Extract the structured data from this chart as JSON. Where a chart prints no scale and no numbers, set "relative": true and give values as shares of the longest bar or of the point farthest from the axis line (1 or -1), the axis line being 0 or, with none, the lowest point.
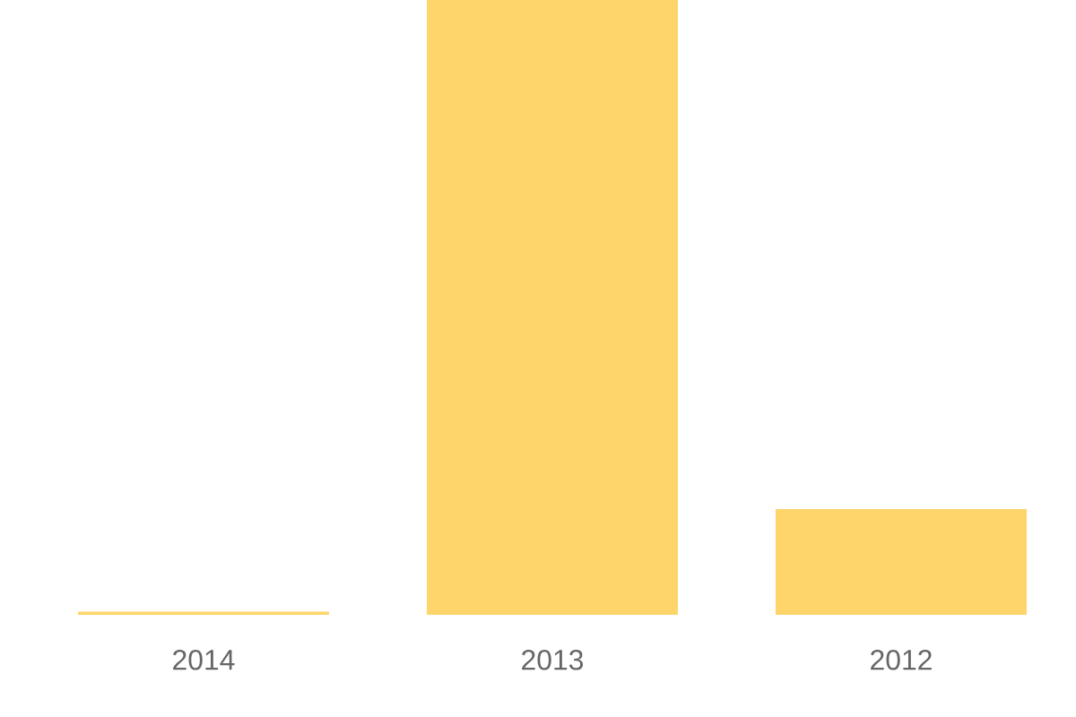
{
  "chart_data": {
    "type": "bar",
    "relative": true,
    "categories": [
      "2014",
      "2013",
      "2012"
    ],
    "values": [
      0.005,
      1,
      0.172
    ],
    "color": "#fed56b"
  }
}
